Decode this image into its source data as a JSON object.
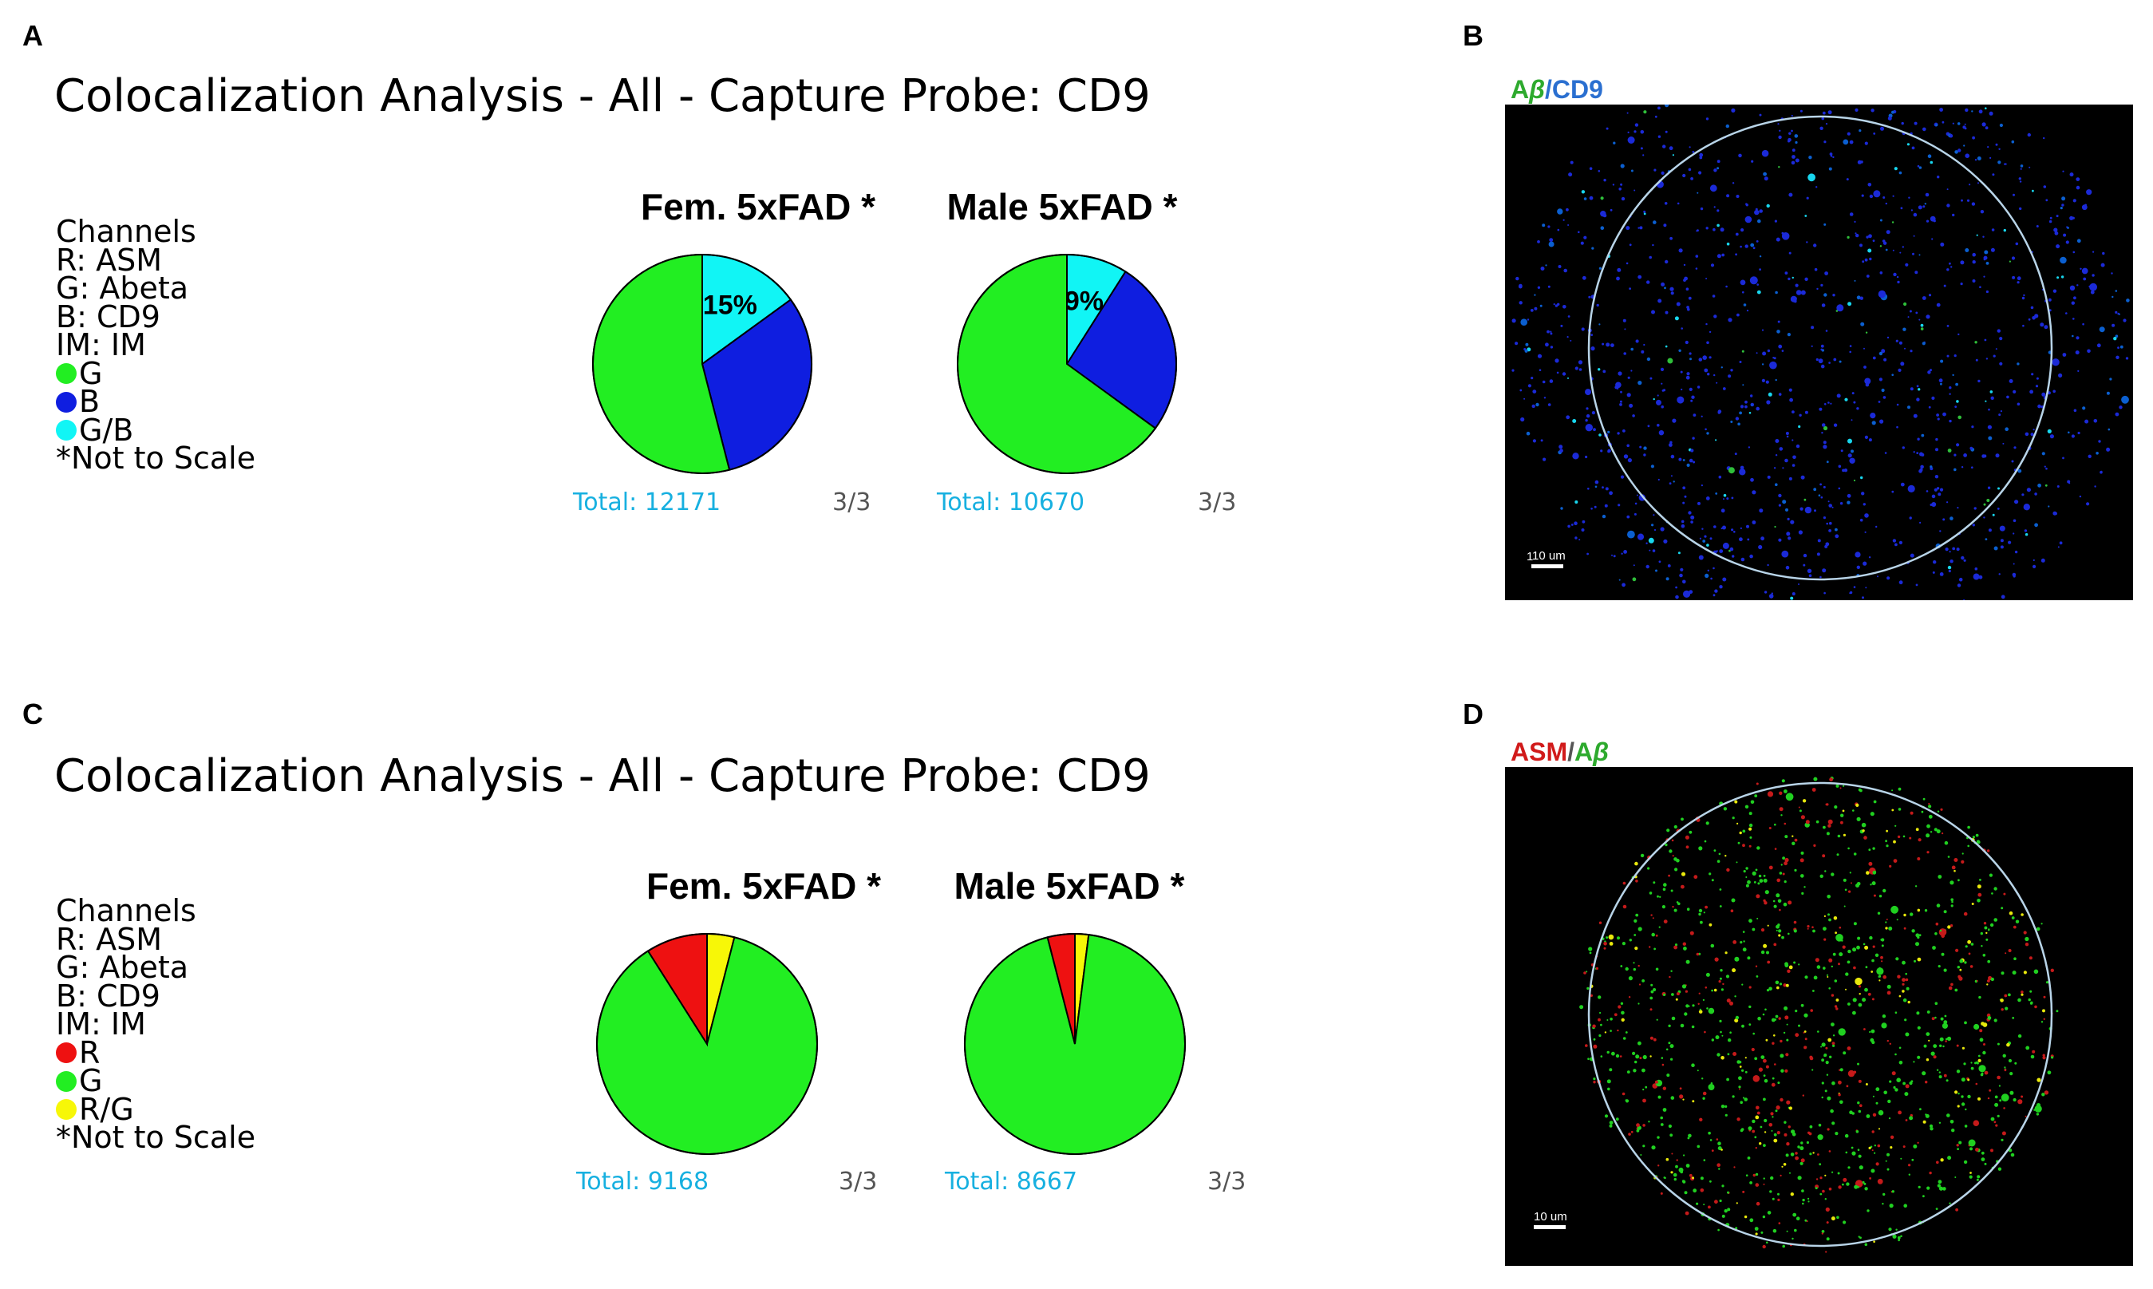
{
  "panels": {
    "A": {
      "letter": "A",
      "title": "Colocalization Analysis - All - Capture Probe: CD9",
      "legend": {
        "lines": [
          "Channels",
          "R: ASM",
          "G: Abeta",
          "B: CD9",
          "IM: IM"
        ],
        "swatches": [
          {
            "label": "G",
            "color": "#22ee22"
          },
          {
            "label": "B",
            "color": "#0f1ee0"
          },
          {
            "label": "G/B",
            "color": "#11f5f5"
          }
        ],
        "note": "*Not to Scale"
      }
    },
    "B": {
      "letter": "B",
      "label": {
        "part1": "A",
        "part2": "β",
        "sep": "/",
        "part3": "CD9"
      },
      "scale_label": "10 um",
      "corner_mark": "1"
    },
    "C": {
      "letter": "C",
      "title": "Colocalization Analysis - All - Capture Probe: CD9",
      "legend": {
        "lines": [
          "Channels",
          "R: ASM",
          "G: Abeta",
          "B: CD9",
          "IM: IM"
        ],
        "swatches": [
          {
            "label": "R",
            "color": "#ee1111"
          },
          {
            "label": "G",
            "color": "#22ee22"
          },
          {
            "label": "R/G",
            "color": "#f7f707"
          }
        ],
        "note": "*Not to Scale"
      }
    },
    "D": {
      "letter": "D",
      "label": {
        "part1": "ASM",
        "sep": "/",
        "part2": "A",
        "part3": "β"
      },
      "scale_label": "10 um"
    }
  },
  "chart_data": [
    {
      "type": "pie",
      "title": "Fem. 5xFAD *",
      "total_label": "Total: 12171",
      "count_label": "3/3",
      "slice_labels": {
        "G/B": "15%"
      },
      "slices": [
        {
          "label": "G/B",
          "value": 15,
          "color": "#11f5f5"
        },
        {
          "label": "B",
          "value": 31,
          "color": "#0f1ee0"
        },
        {
          "label": "G",
          "value": 54,
          "color": "#22ee22"
        }
      ]
    },
    {
      "type": "pie",
      "title": "Male 5xFAD *",
      "total_label": "Total: 10670",
      "count_label": "3/3",
      "slice_labels": {
        "G/B": "9%"
      },
      "slices": [
        {
          "label": "G/B",
          "value": 9,
          "color": "#11f5f5"
        },
        {
          "label": "B",
          "value": 26,
          "color": "#0f1ee0"
        },
        {
          "label": "G",
          "value": 65,
          "color": "#22ee22"
        }
      ]
    },
    {
      "type": "pie",
      "title": "Fem. 5xFAD *",
      "total_label": "Total: 9168",
      "count_label": "3/3",
      "slice_labels": {},
      "slices": [
        {
          "label": "R/G",
          "value": 4,
          "color": "#f7f707"
        },
        {
          "label": "G",
          "value": 87,
          "color": "#22ee22"
        },
        {
          "label": "R",
          "value": 9,
          "color": "#ee1111"
        }
      ]
    },
    {
      "type": "pie",
      "title": "Male 5xFAD *",
      "total_label": "Total: 8667",
      "count_label": "3/3",
      "slice_labels": {},
      "slices": [
        {
          "label": "R/G",
          "value": 2,
          "color": "#f7f707"
        },
        {
          "label": "G",
          "value": 94,
          "color": "#22ee22"
        },
        {
          "label": "R",
          "value": 4,
          "color": "#ee1111"
        }
      ]
    }
  ]
}
